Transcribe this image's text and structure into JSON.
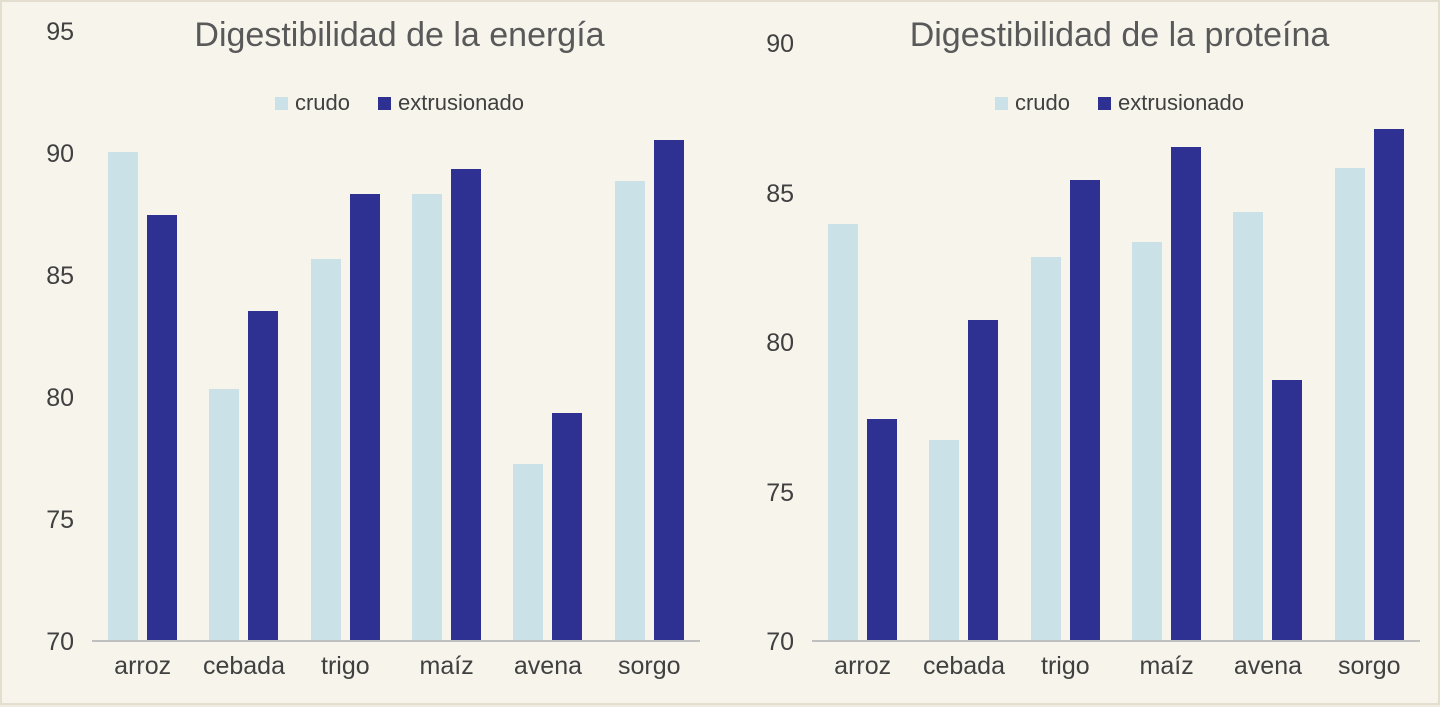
{
  "background_color": "#f7f4ec",
  "colors": {
    "crudo": "#c9e1e7",
    "extrusionado": "#2e3192",
    "axis_line": "#bfbfbf",
    "title_text": "#595959",
    "label_text": "#404040"
  },
  "chart_data": [
    {
      "type": "bar",
      "title": "Digestibilidad de la energía",
      "categories": [
        "arroz",
        "cebada",
        "trigo",
        "maíz",
        "avena",
        "sorgo"
      ],
      "series": [
        {
          "name": "crudo",
          "color_key": "crudo",
          "values": [
            90.0,
            80.3,
            85.6,
            88.3,
            77.2,
            88.8
          ]
        },
        {
          "name": "extrusionado",
          "color_key": "extrusionado",
          "values": [
            87.4,
            83.5,
            88.3,
            89.3,
            79.3,
            90.5
          ]
        }
      ],
      "ylim": [
        70,
        95
      ],
      "yticks": [
        70,
        75,
        80,
        85,
        90,
        95
      ],
      "xlabel": "",
      "ylabel": "",
      "grid": false,
      "legend_position": "top"
    },
    {
      "type": "bar",
      "title": "Digestibilidad de la proteína",
      "categories": [
        "arroz",
        "cebada",
        "trigo",
        "maíz",
        "avena",
        "sorgo"
      ],
      "series": [
        {
          "name": "crudo",
          "color_key": "crudo",
          "values": [
            83.9,
            76.7,
            82.8,
            83.3,
            84.3,
            85.8
          ]
        },
        {
          "name": "extrusionado",
          "color_key": "extrusionado",
          "values": [
            77.4,
            80.7,
            85.4,
            86.5,
            78.7,
            87.1
          ]
        }
      ],
      "ylim": [
        70,
        90
      ],
      "yticks": [
        70,
        75,
        80,
        85,
        90
      ],
      "xlabel": "",
      "ylabel": "",
      "grid": false,
      "legend_position": "top"
    }
  ]
}
